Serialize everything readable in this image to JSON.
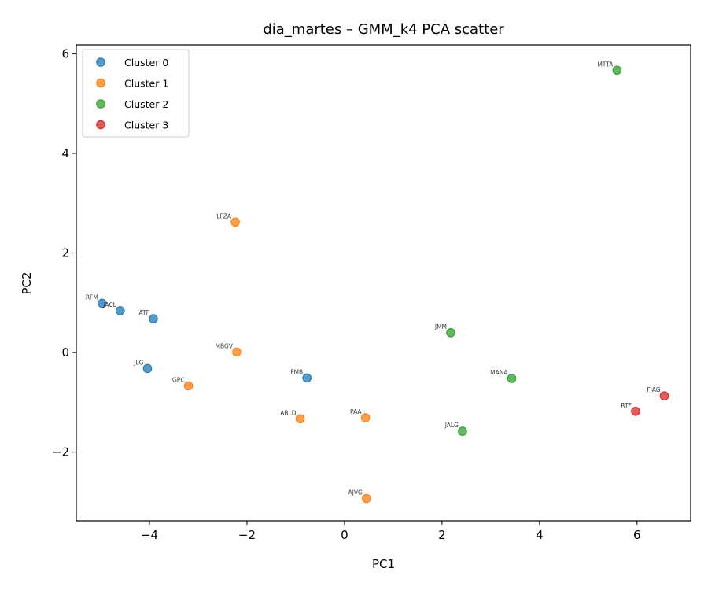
{
  "chart_data": {
    "type": "scatter",
    "title": "dia_martes – GMM_k4 PCA scatter",
    "xlabel": "PC1",
    "ylabel": "PC2",
    "xlim": [
      -5.5,
      7.1
    ],
    "ylim": [
      -3.38,
      6.18
    ],
    "xticks": [
      -4,
      -2,
      0,
      2,
      4,
      6
    ],
    "yticks": [
      -2,
      0,
      2,
      4,
      6
    ],
    "xtick_labels": [
      "−4",
      "−2",
      "0",
      "2",
      "4",
      "6"
    ],
    "ytick_labels": [
      "−2",
      "0",
      "2",
      "4",
      "6"
    ],
    "grid": false,
    "legend_position": "upper-left",
    "series": [
      {
        "name": "Cluster 0",
        "color": "#1f77b4",
        "points": [
          {
            "label": "RFM",
            "x": -4.97,
            "y": 0.99
          },
          {
            "label": "JACL",
            "x": -4.6,
            "y": 0.84
          },
          {
            "label": "ATF",
            "x": -3.92,
            "y": 0.68
          },
          {
            "label": "JLG",
            "x": -4.04,
            "y": -0.32
          },
          {
            "label": "FMB",
            "x": -0.77,
            "y": -0.51
          }
        ]
      },
      {
        "name": "Cluster 1",
        "color": "#ff7f0e",
        "points": [
          {
            "label": "LFZA",
            "x": -2.24,
            "y": 2.62
          },
          {
            "label": "MBGV",
            "x": -2.21,
            "y": 0.01
          },
          {
            "label": "GPC",
            "x": -3.2,
            "y": -0.67
          },
          {
            "label": "ABLD",
            "x": -0.91,
            "y": -1.33
          },
          {
            "label": "PAA",
            "x": 0.43,
            "y": -1.31
          },
          {
            "label": "AJVG",
            "x": 0.45,
            "y": -2.93
          }
        ]
      },
      {
        "name": "Cluster 2",
        "color": "#2ca02c",
        "points": [
          {
            "label": "MTTA",
            "x": 5.59,
            "y": 5.67
          },
          {
            "label": "JMM",
            "x": 2.18,
            "y": 0.4
          },
          {
            "label": "MANA",
            "x": 3.43,
            "y": -0.52
          },
          {
            "label": "JALG",
            "x": 2.42,
            "y": -1.58
          }
        ]
      },
      {
        "name": "Cluster 3",
        "color": "#d62728",
        "points": [
          {
            "label": "FJAG",
            "x": 6.56,
            "y": -0.87
          },
          {
            "label": "RTF",
            "x": 5.97,
            "y": -1.18
          }
        ]
      }
    ]
  }
}
